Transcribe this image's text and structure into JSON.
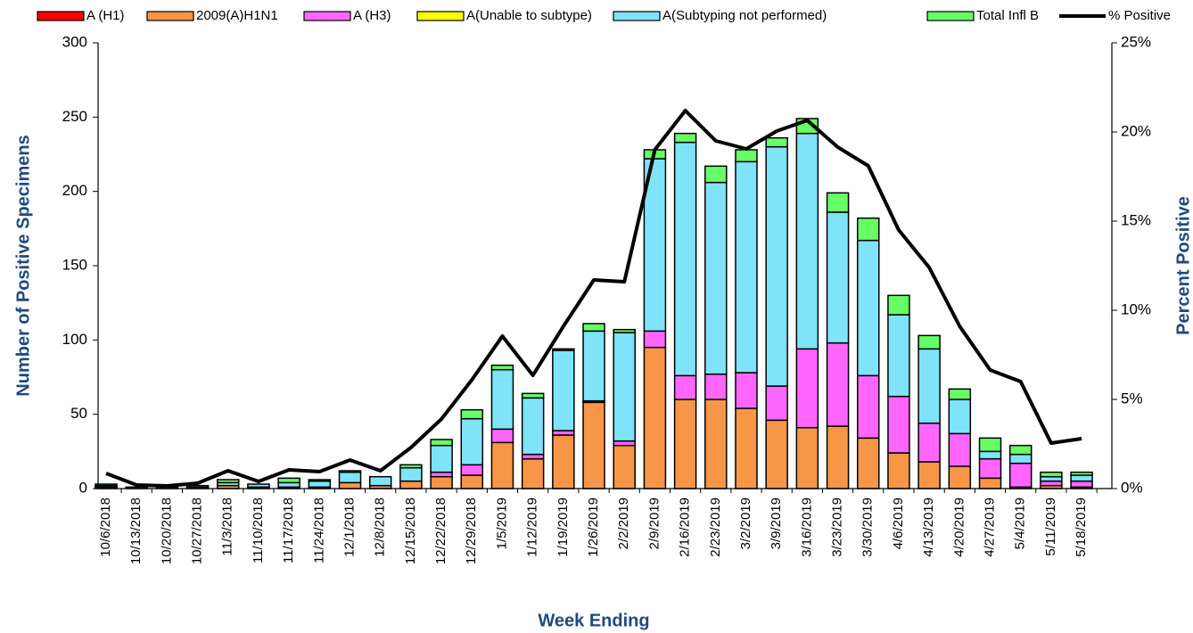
{
  "chart_data": {
    "type": "bar",
    "stacked": true,
    "y_label": "Number of  Positive Specimens",
    "y2_label": "Percent Positive",
    "x_label": "Week Ending",
    "categories": [
      "10/6/2018",
      "10/13/2018",
      "10/20/2018",
      "10/27/2018",
      "11/3/2018",
      "11/10/2018",
      "11/17/2018",
      "11/24/2018",
      "12/1/2018",
      "12/8/2018",
      "12/15/2018",
      "12/22/2018",
      "12/29/2018",
      "1/5/2019",
      "1/12/2019",
      "1/19/2019",
      "1/26/2019",
      "2/2/2019",
      "2/9/2019",
      "2/16/2019",
      "2/23/2019",
      "3/2/2019",
      "3/9/2019",
      "3/16/2019",
      "3/23/2019",
      "3/30/2019",
      "4/6/2019",
      "4/13/2019",
      "4/20/2019",
      "4/27/2019",
      "5/4/2019",
      "5/11/2019",
      "5/18/2019"
    ],
    "series": [
      {
        "name": "A (H1)",
        "color": "#ff0000",
        "values": [
          0,
          0,
          0,
          0,
          0,
          0,
          0,
          0,
          0,
          0,
          0,
          0,
          0,
          0,
          0,
          0,
          0,
          0,
          0,
          0,
          0,
          0,
          0,
          0,
          0,
          0,
          0,
          0,
          0,
          0,
          0,
          0,
          0
        ]
      },
      {
        "name": "2009(A)H1N1",
        "color": "#f79646",
        "values": [
          1,
          0,
          0,
          1,
          2,
          1,
          1,
          1,
          4,
          2,
          5,
          8,
          9,
          31,
          20,
          36,
          58,
          29,
          95,
          60,
          60,
          54,
          46,
          41,
          42,
          34,
          24,
          18,
          15,
          7,
          1,
          2,
          1
        ]
      },
      {
        "name": "A (H3)",
        "color": "#ff66ff",
        "values": [
          0,
          0,
          0,
          0,
          0,
          0,
          0,
          0,
          0,
          0,
          0,
          3,
          7,
          9,
          3,
          3,
          1,
          3,
          11,
          16,
          17,
          24,
          23,
          53,
          56,
          42,
          38,
          26,
          22,
          13,
          16,
          3,
          4
        ]
      },
      {
        "name": "A(Unable to subtype)",
        "color": "#ffff00",
        "values": [
          0,
          0,
          0,
          0,
          0,
          0,
          0,
          0,
          0,
          0,
          0,
          0,
          0,
          0,
          0,
          0,
          0,
          0,
          0,
          0,
          0,
          0,
          0,
          0,
          0,
          0,
          0,
          0,
          0,
          0,
          0,
          0,
          0
        ]
      },
      {
        "name": "A(Subtyping not performed)",
        "color": "#7fe3f9",
        "values": [
          1,
          1,
          1,
          1,
          2,
          2,
          3,
          4,
          7,
          6,
          9,
          18,
          31,
          40,
          38,
          54,
          47,
          73,
          116,
          157,
          129,
          142,
          161,
          145,
          88,
          91,
          55,
          50,
          23,
          5,
          6,
          3,
          4
        ]
      },
      {
        "name": "Total Infl B",
        "color": "#66ff66",
        "values": [
          1,
          0,
          0,
          0,
          2,
          0,
          3,
          1,
          1,
          0,
          2,
          4,
          6,
          3,
          3,
          1,
          5,
          2,
          6,
          6,
          11,
          8,
          6,
          10,
          13,
          15,
          13,
          9,
          7,
          9,
          6,
          3,
          2
        ]
      },
      {
        "name": "% Positive",
        "color": "#000000",
        "type": "line",
        "axis": "y2",
        "values": [
          0.85,
          0.2,
          0.15,
          0.3,
          1.0,
          0.4,
          1.05,
          0.95,
          1.6,
          1.0,
          2.3,
          3.9,
          6.1,
          8.55,
          6.35,
          9.1,
          11.7,
          11.6,
          19.0,
          21.2,
          19.5,
          19.05,
          20.05,
          20.65,
          19.15,
          18.1,
          14.5,
          12.4,
          9.1,
          6.65,
          6.0,
          2.55,
          2.8
        ]
      }
    ],
    "ylim": [
      0,
      300
    ],
    "yticks": [
      0,
      50,
      100,
      150,
      200,
      250,
      300
    ],
    "y2lim": [
      0,
      25
    ],
    "y2ticks": [
      {
        "value": 0,
        "label": "0%"
      },
      {
        "value": 5,
        "label": "5%"
      },
      {
        "value": 10,
        "label": "10%"
      },
      {
        "value": 15,
        "label": "15%"
      },
      {
        "value": 20,
        "label": "20%"
      },
      {
        "value": 25,
        "label": "25%"
      }
    ],
    "legend": "top"
  }
}
